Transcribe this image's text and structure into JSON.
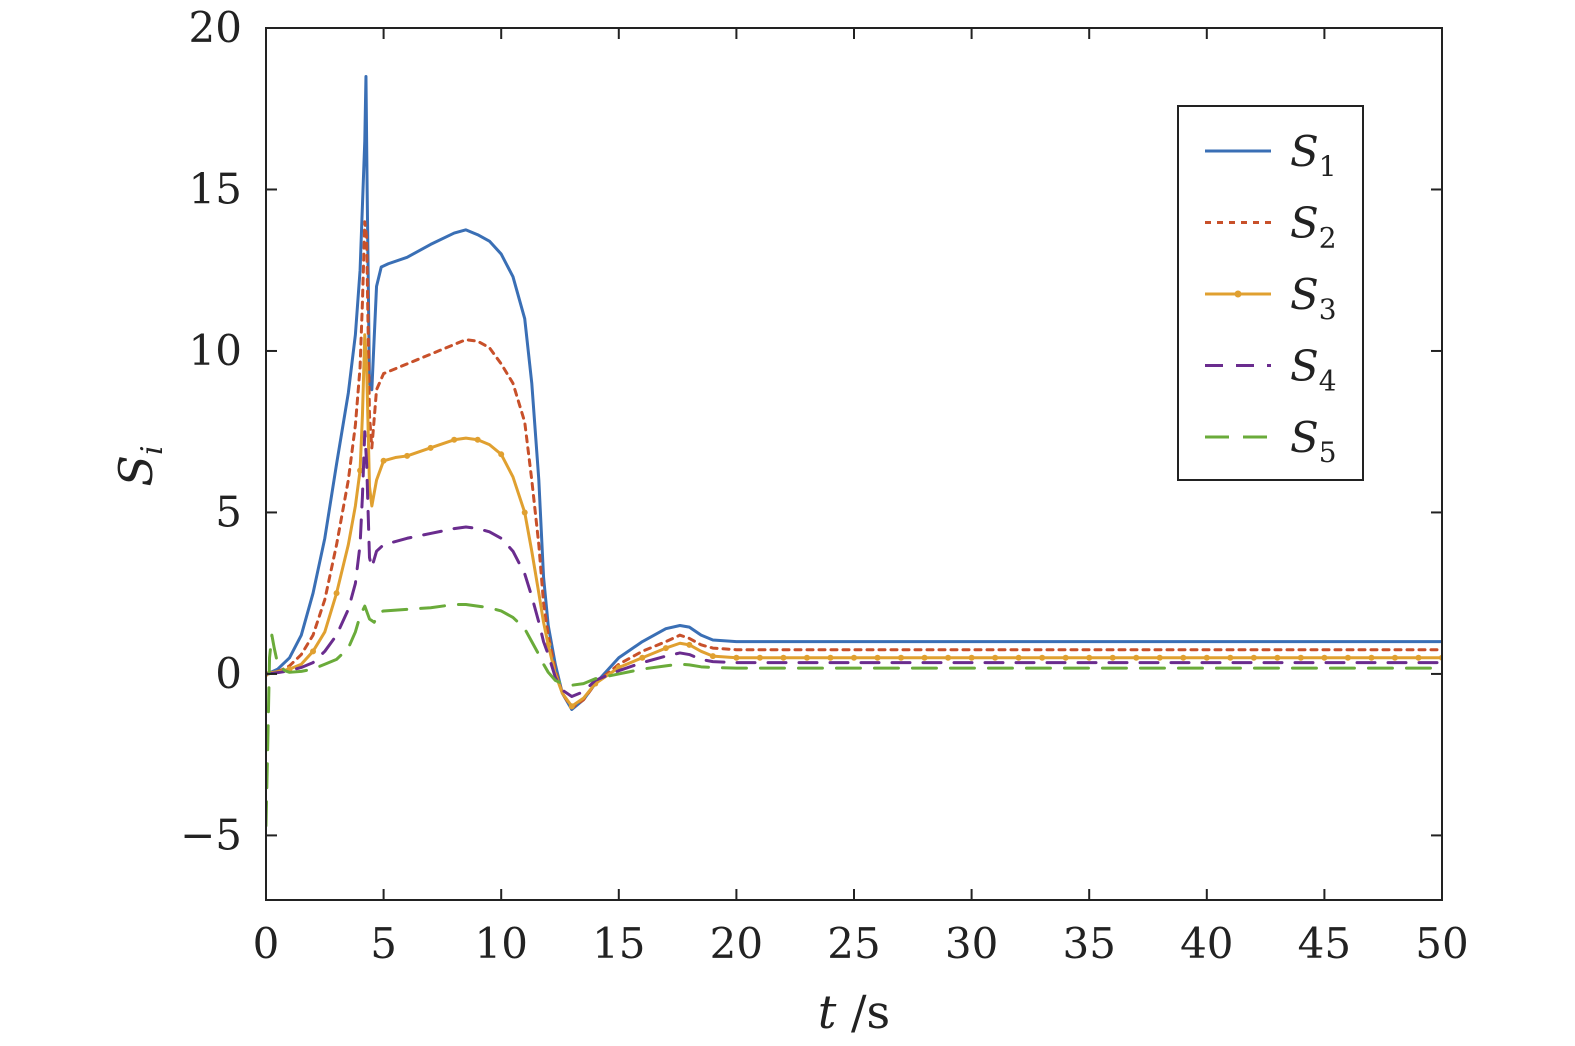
{
  "chart_data": {
    "type": "line",
    "title": "",
    "xlabel": "t /s",
    "ylabel": "S_i",
    "xlim": [
      0,
      50
    ],
    "ylim": [
      -7,
      20
    ],
    "xticks": [
      0,
      5,
      10,
      15,
      20,
      25,
      30,
      35,
      40,
      45,
      50
    ],
    "yticks": [
      -5,
      0,
      5,
      10,
      15,
      20
    ],
    "xtick_labels": [
      "0",
      "5",
      "10",
      "15",
      "20",
      "25",
      "30",
      "35",
      "40",
      "45",
      "50"
    ],
    "ytick_labels": [
      "−5",
      "0",
      "5",
      "10",
      "15",
      "20"
    ],
    "grid": false,
    "legend_position": "top-right",
    "series": [
      {
        "name": "S_1",
        "label_main": "S",
        "label_sub": "1",
        "color": "#3a6fb5",
        "style": "solid",
        "points": [
          [
            0,
            0
          ],
          [
            0.2,
            0.05
          ],
          [
            0.5,
            0.15
          ],
          [
            1,
            0.5
          ],
          [
            1.5,
            1.2
          ],
          [
            2,
            2.5
          ],
          [
            2.5,
            4.2
          ],
          [
            3,
            6.5
          ],
          [
            3.5,
            8.7
          ],
          [
            3.8,
            10.5
          ],
          [
            4,
            12.5
          ],
          [
            4.1,
            14.5
          ],
          [
            4.2,
            16.5
          ],
          [
            4.25,
            18.5
          ],
          [
            4.3,
            15.0
          ],
          [
            4.4,
            9.0
          ],
          [
            4.5,
            8.8
          ],
          [
            4.7,
            12.0
          ],
          [
            4.9,
            12.6
          ],
          [
            5.2,
            12.7
          ],
          [
            6,
            12.9
          ],
          [
            7,
            13.3
          ],
          [
            8,
            13.65
          ],
          [
            8.5,
            13.75
          ],
          [
            9,
            13.6
          ],
          [
            9.5,
            13.4
          ],
          [
            10,
            13.0
          ],
          [
            10.5,
            12.3
          ],
          [
            11,
            11.0
          ],
          [
            11.3,
            9.0
          ],
          [
            11.6,
            6.0
          ],
          [
            11.8,
            3.0
          ],
          [
            12,
            1.5
          ],
          [
            12.3,
            0.3
          ],
          [
            12.6,
            -0.6
          ],
          [
            13,
            -1.1
          ],
          [
            13.5,
            -0.8
          ],
          [
            14,
            -0.3
          ],
          [
            15,
            0.5
          ],
          [
            16,
            1.0
          ],
          [
            17,
            1.4
          ],
          [
            17.6,
            1.5
          ],
          [
            18,
            1.45
          ],
          [
            18.5,
            1.2
          ],
          [
            19,
            1.05
          ],
          [
            20,
            1.0
          ],
          [
            25,
            1.0
          ],
          [
            30,
            1.0
          ],
          [
            35,
            1.0
          ],
          [
            40,
            1.0
          ],
          [
            45,
            1.0
          ],
          [
            50,
            1.0
          ]
        ]
      },
      {
        "name": "S_2",
        "label_main": "S",
        "label_sub": "2",
        "color": "#c8502a",
        "style": "dotted",
        "points": [
          [
            0,
            0
          ],
          [
            0.3,
            0.05
          ],
          [
            0.6,
            0.1
          ],
          [
            1,
            0.25
          ],
          [
            1.5,
            0.6
          ],
          [
            2,
            1.2
          ],
          [
            2.5,
            2.3
          ],
          [
            3,
            4.0
          ],
          [
            3.5,
            6.0
          ],
          [
            3.8,
            7.7
          ],
          [
            4,
            9.5
          ],
          [
            4.1,
            11.5
          ],
          [
            4.2,
            14.0
          ],
          [
            4.28,
            13.5
          ],
          [
            4.4,
            8.0
          ],
          [
            4.5,
            7.0
          ],
          [
            4.7,
            8.8
          ],
          [
            5,
            9.3
          ],
          [
            6,
            9.6
          ],
          [
            7,
            9.9
          ],
          [
            8,
            10.2
          ],
          [
            8.5,
            10.35
          ],
          [
            9,
            10.3
          ],
          [
            9.5,
            10.1
          ],
          [
            10,
            9.6
          ],
          [
            10.5,
            9.0
          ],
          [
            11,
            7.8
          ],
          [
            11.3,
            6.0
          ],
          [
            11.6,
            4.0
          ],
          [
            11.8,
            2.2
          ],
          [
            12,
            1.2
          ],
          [
            12.3,
            0.1
          ],
          [
            12.6,
            -0.6
          ],
          [
            13,
            -1.05
          ],
          [
            13.5,
            -0.8
          ],
          [
            14,
            -0.3
          ],
          [
            15,
            0.3
          ],
          [
            16,
            0.7
          ],
          [
            17,
            1.0
          ],
          [
            17.6,
            1.2
          ],
          [
            18,
            1.1
          ],
          [
            18.5,
            0.9
          ],
          [
            19,
            0.8
          ],
          [
            20,
            0.75
          ],
          [
            25,
            0.75
          ],
          [
            30,
            0.75
          ],
          [
            35,
            0.75
          ],
          [
            40,
            0.75
          ],
          [
            45,
            0.75
          ],
          [
            50,
            0.75
          ]
        ]
      },
      {
        "name": "S_3",
        "label_main": "S",
        "label_sub": "3",
        "color": "#e0a030",
        "style": "solid-dot",
        "points": [
          [
            0,
            0
          ],
          [
            0.3,
            0.05
          ],
          [
            0.6,
            0.08
          ],
          [
            1,
            0.15
          ],
          [
            1.5,
            0.3
          ],
          [
            2,
            0.7
          ],
          [
            2.5,
            1.3
          ],
          [
            3,
            2.5
          ],
          [
            3.5,
            4.0
          ],
          [
            3.8,
            5.2
          ],
          [
            4,
            6.3
          ],
          [
            4.1,
            8.0
          ],
          [
            4.2,
            10.5
          ],
          [
            4.28,
            9.5
          ],
          [
            4.4,
            5.8
          ],
          [
            4.5,
            5.2
          ],
          [
            4.7,
            6.0
          ],
          [
            5,
            6.6
          ],
          [
            5.5,
            6.7
          ],
          [
            6,
            6.75
          ],
          [
            7,
            7.0
          ],
          [
            8,
            7.25
          ],
          [
            8.5,
            7.3
          ],
          [
            9,
            7.25
          ],
          [
            9.5,
            7.1
          ],
          [
            10,
            6.8
          ],
          [
            10.5,
            6.1
          ],
          [
            11,
            5.0
          ],
          [
            11.3,
            3.8
          ],
          [
            11.6,
            2.5
          ],
          [
            11.8,
            1.6
          ],
          [
            12,
            0.9
          ],
          [
            12.3,
            0.0
          ],
          [
            12.6,
            -0.6
          ],
          [
            13,
            -1.0
          ],
          [
            13.5,
            -0.75
          ],
          [
            14,
            -0.3
          ],
          [
            15,
            0.2
          ],
          [
            16,
            0.5
          ],
          [
            17,
            0.8
          ],
          [
            17.6,
            0.95
          ],
          [
            18,
            0.9
          ],
          [
            18.5,
            0.7
          ],
          [
            19,
            0.55
          ],
          [
            20,
            0.5
          ],
          [
            25,
            0.5
          ],
          [
            30,
            0.5
          ],
          [
            35,
            0.5
          ],
          [
            40,
            0.5
          ],
          [
            45,
            0.5
          ],
          [
            50,
            0.5
          ]
        ]
      },
      {
        "name": "S_4",
        "label_main": "S",
        "label_sub": "4",
        "color": "#6a2c8e",
        "style": "dashed",
        "points": [
          [
            0,
            0
          ],
          [
            0.3,
            0.02
          ],
          [
            0.6,
            0.05
          ],
          [
            1,
            0.1
          ],
          [
            1.5,
            0.2
          ],
          [
            2,
            0.35
          ],
          [
            2.5,
            0.7
          ],
          [
            3,
            1.2
          ],
          [
            3.5,
            2.0
          ],
          [
            3.8,
            2.8
          ],
          [
            4,
            4.0
          ],
          [
            4.1,
            5.5
          ],
          [
            4.2,
            7.5
          ],
          [
            4.28,
            6.5
          ],
          [
            4.4,
            3.6
          ],
          [
            4.5,
            3.3
          ],
          [
            4.7,
            3.8
          ],
          [
            5,
            4.0
          ],
          [
            6,
            4.2
          ],
          [
            7,
            4.35
          ],
          [
            8,
            4.5
          ],
          [
            8.5,
            4.55
          ],
          [
            9,
            4.5
          ],
          [
            9.5,
            4.4
          ],
          [
            10,
            4.2
          ],
          [
            10.5,
            3.8
          ],
          [
            11,
            3.1
          ],
          [
            11.3,
            2.4
          ],
          [
            11.6,
            1.6
          ],
          [
            11.8,
            1.0
          ],
          [
            12,
            0.6
          ],
          [
            12.3,
            -0.1
          ],
          [
            12.6,
            -0.5
          ],
          [
            13,
            -0.7
          ],
          [
            13.5,
            -0.55
          ],
          [
            14,
            -0.2
          ],
          [
            15,
            0.1
          ],
          [
            16,
            0.35
          ],
          [
            17,
            0.55
          ],
          [
            17.6,
            0.65
          ],
          [
            18,
            0.6
          ],
          [
            18.5,
            0.45
          ],
          [
            19,
            0.38
          ],
          [
            20,
            0.35
          ],
          [
            25,
            0.35
          ],
          [
            30,
            0.35
          ],
          [
            35,
            0.35
          ],
          [
            40,
            0.35
          ],
          [
            45,
            0.35
          ],
          [
            50,
            0.35
          ]
        ]
      },
      {
        "name": "S_5",
        "label_main": "S",
        "label_sub": "5",
        "color": "#6aab3a",
        "style": "long-dashed",
        "points": [
          [
            0,
            -4.7
          ],
          [
            0.08,
            -2.0
          ],
          [
            0.15,
            0.5
          ],
          [
            0.25,
            1.2
          ],
          [
            0.35,
            0.8
          ],
          [
            0.5,
            0.3
          ],
          [
            0.8,
            0.1
          ],
          [
            1,
            0.05
          ],
          [
            1.5,
            0.08
          ],
          [
            2,
            0.15
          ],
          [
            2.5,
            0.3
          ],
          [
            3,
            0.45
          ],
          [
            3.5,
            0.8
          ],
          [
            3.8,
            1.3
          ],
          [
            4,
            1.8
          ],
          [
            4.2,
            2.1
          ],
          [
            4.4,
            1.7
          ],
          [
            4.6,
            1.6
          ],
          [
            4.8,
            1.9
          ],
          [
            5,
            1.95
          ],
          [
            6,
            2.0
          ],
          [
            7,
            2.05
          ],
          [
            8,
            2.15
          ],
          [
            8.5,
            2.15
          ],
          [
            9,
            2.1
          ],
          [
            9.5,
            2.05
          ],
          [
            10,
            1.95
          ],
          [
            10.5,
            1.75
          ],
          [
            11,
            1.4
          ],
          [
            11.3,
            1.0
          ],
          [
            11.6,
            0.6
          ],
          [
            11.8,
            0.3
          ],
          [
            12,
            0.05
          ],
          [
            12.3,
            -0.2
          ],
          [
            12.6,
            -0.3
          ],
          [
            13,
            -0.35
          ],
          [
            13.5,
            -0.3
          ],
          [
            14,
            -0.15
          ],
          [
            15,
            0.0
          ],
          [
            16,
            0.15
          ],
          [
            17,
            0.25
          ],
          [
            17.6,
            0.3
          ],
          [
            18,
            0.28
          ],
          [
            18.5,
            0.22
          ],
          [
            19,
            0.2
          ],
          [
            20,
            0.18
          ],
          [
            25,
            0.18
          ],
          [
            30,
            0.18
          ],
          [
            35,
            0.18
          ],
          [
            40,
            0.18
          ],
          [
            45,
            0.18
          ],
          [
            50,
            0.18
          ]
        ]
      }
    ]
  }
}
